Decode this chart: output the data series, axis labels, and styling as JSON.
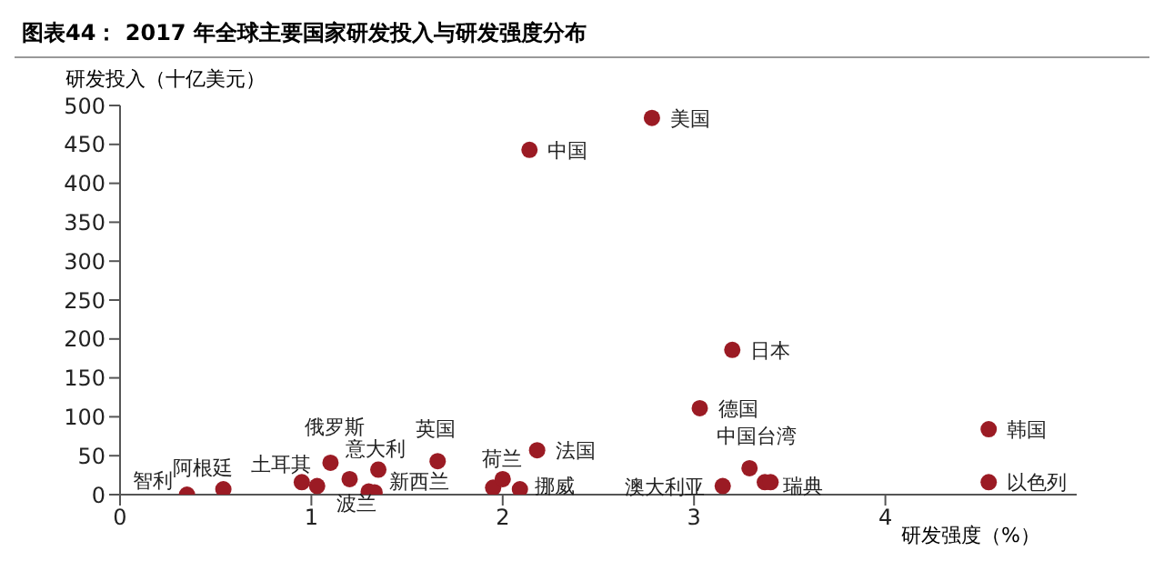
{
  "chart_data": {
    "type": "scatter",
    "title": "图表44：  2017 年全球主要国家研发投入与研发强度分布",
    "ylabel": "研发投入（十亿美元）",
    "xlabel": "研发强度（%）",
    "x": [
      0.35,
      0.54,
      0.95,
      1.03,
      1.1,
      1.2,
      1.35,
      1.3,
      1.33,
      1.66,
      1.95,
      2.0,
      2.09,
      2.18,
      2.14,
      2.78,
      3.2,
      3.03,
      4.54,
      3.29,
      3.37,
      3.4,
      3.15,
      4.54
    ],
    "series": [
      {
        "color": "#9b1b24",
        "values": [
          0,
          7,
          16,
          11,
          41,
          20,
          32,
          4,
          3,
          43,
          9,
          20,
          7,
          57,
          443,
          484,
          186,
          111,
          84,
          34,
          16,
          16,
          11,
          16
        ]
      }
    ],
    "xlim": [
      0,
      5
    ],
    "xticks": [
      0,
      1,
      2,
      3,
      4
    ],
    "ylim": [
      0,
      500
    ],
    "yticks": [
      0,
      50,
      100,
      150,
      200,
      250,
      300,
      350,
      400,
      450,
      500
    ],
    "grid": false,
    "marker": "circle",
    "annotations": [
      {
        "text": "智利",
        "x": 0.35,
        "y": 0
      },
      {
        "text": "阿根廷",
        "x": 0.54,
        "y": 7
      },
      {
        "text": "土耳其",
        "x": 0.95,
        "y": 16
      },
      {
        "text": "俄罗斯",
        "x": 1.1,
        "y": 41
      },
      {
        "text": "意大利",
        "x": 1.35,
        "y": 32
      },
      {
        "text": "波兰",
        "x": 1.3,
        "y": 4
      },
      {
        "text": "新西兰",
        "x": 1.33,
        "y": 3
      },
      {
        "text": "英国",
        "x": 1.66,
        "y": 43
      },
      {
        "text": "荷兰",
        "x": 1.95,
        "y": 9
      },
      {
        "text": "挪威",
        "x": 2.09,
        "y": 7
      },
      {
        "text": "法国",
        "x": 2.18,
        "y": 57
      },
      {
        "text": "中国",
        "x": 2.14,
        "y": 443
      },
      {
        "text": "美国",
        "x": 2.78,
        "y": 484
      },
      {
        "text": "日本",
        "x": 3.2,
        "y": 186
      },
      {
        "text": "德国",
        "x": 3.03,
        "y": 111
      },
      {
        "text": "韩国",
        "x": 4.54,
        "y": 84
      },
      {
        "text": "中国台湾",
        "x": 3.29,
        "y": 34
      },
      {
        "text": "澳大利亚",
        "x": 3.15,
        "y": 11
      },
      {
        "text": "瑞典",
        "x": 3.37,
        "y": 16
      },
      {
        "text": "以色列",
        "x": 4.54,
        "y": 16
      }
    ]
  }
}
